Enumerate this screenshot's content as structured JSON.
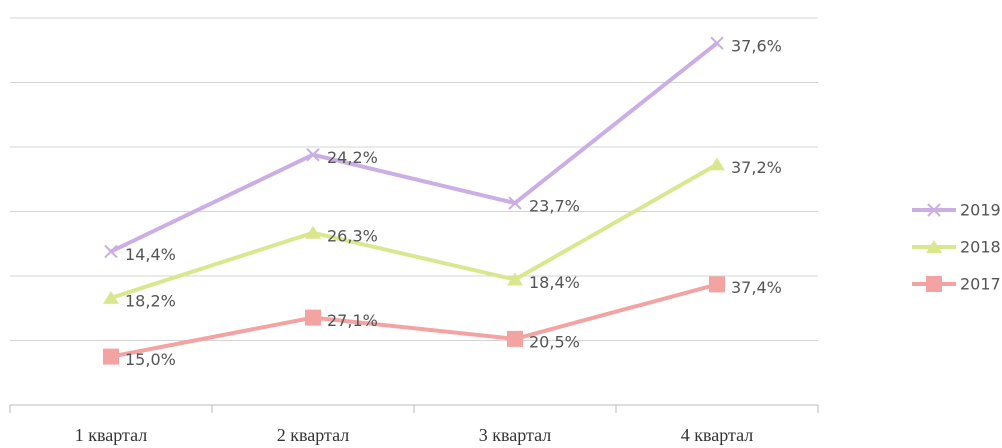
{
  "chart_data": {
    "type": "line",
    "stacked": true,
    "categories": [
      "1 квартал",
      "2 квартал",
      "3 квартал",
      "4 квартал"
    ],
    "series": [
      {
        "name": "2017",
        "color": "#f4a3a3",
        "marker": "square",
        "values": [
          15.0,
          27.1,
          20.5,
          37.4
        ],
        "value_labels": [
          "15,0%",
          "27,1%",
          "20,5%",
          "37,4%"
        ]
      },
      {
        "name": "2018",
        "color": "#dbe78e",
        "marker": "triangle",
        "values": [
          18.2,
          26.3,
          18.4,
          37.2
        ],
        "value_labels": [
          "18,2%",
          "26,3%",
          "18,4%",
          "37,2%"
        ]
      },
      {
        "name": "2019",
        "color": "#cbaee3",
        "marker": "x",
        "values": [
          14.4,
          24.2,
          23.7,
          37.6
        ],
        "value_labels": [
          "14,4%",
          "24,2%",
          "23,7%",
          "37,6%"
        ]
      }
    ],
    "ylim": [
      0,
      120
    ],
    "yticks": [
      0,
      20,
      40,
      60,
      80,
      100,
      120
    ],
    "grid": true,
    "legend": "right"
  }
}
